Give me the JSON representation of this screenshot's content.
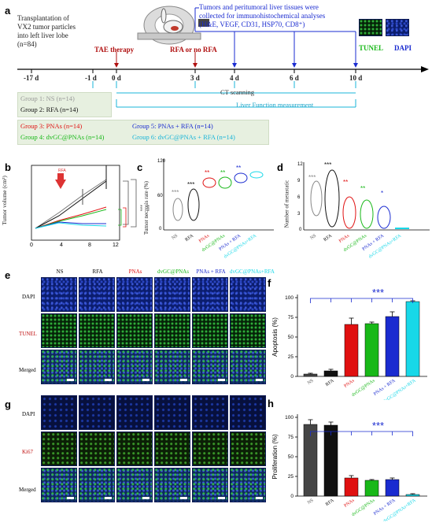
{
  "panel_a": {
    "letter": "a",
    "transplant_text": [
      "Transplantation of",
      "VX2 tumor particles",
      "into left liver lobe",
      "(n=84)"
    ],
    "collection_text": [
      "Tumors and peritumoral liver tissues were",
      "collected for immunohistochemical analyses",
      "(H&E, VEGF, CD31, HSP70, CD8⁺)"
    ],
    "tae_label": "TAE therapy",
    "rfa_label": "RFA or no RFA",
    "tunel_label": "TUNEL",
    "dapi_label": "DAPI",
    "days": [
      "-17 d",
      "-1 d",
      "0 d",
      "3 d",
      "4 d",
      "6 d",
      "10 d"
    ],
    "ct_label": "CT scanning",
    "liver_label": "Liver Function measurement",
    "groups": [
      {
        "text": "Group 1: NS (n=14)",
        "color": "#9a9a9a"
      },
      {
        "text": "Group 2: RFA (n=14)",
        "color": "#111111"
      },
      {
        "text": "Group 3: PNAs (n=14)",
        "color": "#e01010"
      },
      {
        "text": "Group 4: dvGC@PNAs (n=14)",
        "color": "#18b818"
      },
      {
        "text": "Group 5: PNAs + RFA (n=14)",
        "color": "#1a2bd0"
      },
      {
        "text": "Group 6: dvGC@PNAs + RFA (n=14)",
        "color": "#18b4d8"
      }
    ]
  },
  "panel_b": {
    "letter": "b",
    "ylabel": "Tumor volume (cm³)",
    "rfa_arrow_label": "RFA",
    "xticks": [
      "0",
      "4",
      "8",
      "12"
    ],
    "sig": [
      "***",
      "***",
      "***",
      "**",
      "**",
      "**",
      "*"
    ]
  },
  "panel_c": {
    "letter": "c",
    "ylabel": "Tumor necrosis rate (%)",
    "yticks": [
      "0",
      "60",
      "120"
    ],
    "stars": [
      "***",
      "***",
      "**",
      "**",
      "**"
    ]
  },
  "panel_d": {
    "letter": "d",
    "ylabel": "Number of metastatic",
    "yticks": [
      "0",
      "3",
      "6",
      "9",
      "12"
    ],
    "stars": [
      "***",
      "***",
      "**",
      "**",
      "*"
    ]
  },
  "categories": [
    "NS",
    "RFA",
    "PNAs",
    "dvGC@PNAs",
    "PNAs + RFA",
    "dvGC@PNAs+RFA"
  ],
  "category_colors": [
    "#555555",
    "#111111",
    "#e01010",
    "#18b818",
    "#1a2bd0",
    "#18d8e8"
  ],
  "panel_e": {
    "letter": "e",
    "rows": [
      "DAPI",
      "TUNEL",
      "Merged"
    ],
    "row_colors": [
      "#000000",
      "#c01010",
      "#000000"
    ]
  },
  "panel_g": {
    "letter": "g",
    "rows": [
      "DAPI",
      "Ki67",
      "Merged"
    ],
    "row_colors": [
      "#000000",
      "#c01010",
      "#000000"
    ]
  },
  "chart_data": [
    {
      "panel": "f",
      "type": "bar",
      "ylabel": "Apoptosis (%)",
      "ylim": [
        0,
        100
      ],
      "yticks": [
        0,
        25,
        50,
        75,
        100
      ],
      "categories": [
        "NS",
        "RFA",
        "PNAs",
        "dvGC@PNAs",
        "PNAs + RFA",
        "dvGC@PNAs+RFA"
      ],
      "values": [
        3,
        7,
        66,
        67,
        76,
        95
      ],
      "errors": [
        1,
        2,
        8,
        2,
        6,
        1
      ],
      "significance": "***"
    },
    {
      "panel": "h",
      "type": "bar",
      "ylabel": "Proliferation (%)",
      "ylim": [
        0,
        100
      ],
      "yticks": [
        0,
        25,
        50,
        75,
        100
      ],
      "categories": [
        "NS",
        "RFA",
        "PNAs",
        "dvGC@PNAs",
        "PNAs + RFA",
        "dvGC@PNAs+RFA"
      ],
      "values": [
        91,
        90,
        23,
        20,
        21,
        2
      ],
      "errors": [
        6,
        4,
        3,
        1,
        2,
        1
      ],
      "significance": "***"
    }
  ]
}
